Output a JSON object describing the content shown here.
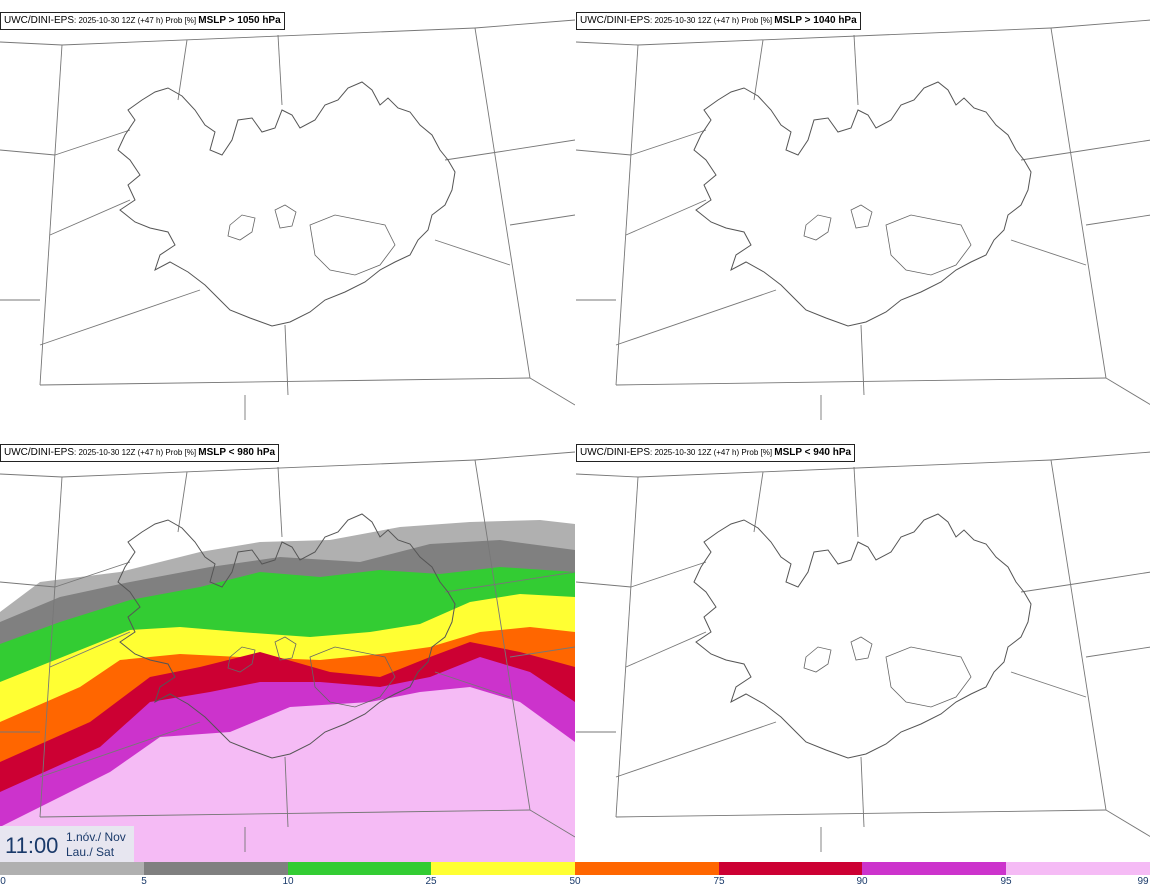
{
  "panels": [
    {
      "model": "UWC/DINI-EPS",
      "meta": ": 2025-10-30 12Z (+47 h) Prob [%] ",
      "threshold": "MSLP > 1050 hPa"
    },
    {
      "model": "UWC/DINI-EPS",
      "meta": ": 2025-10-30 12Z (+47 h) Prob [%] ",
      "threshold": "MSLP > 1040 hPa"
    },
    {
      "model": "UWC/DINI-EPS",
      "meta": ": 2025-10-30 12Z (+47 h) Prob [%] ",
      "threshold": "MSLP < 980 hPa"
    },
    {
      "model": "UWC/DINI-EPS",
      "meta": ": 2025-10-30 12Z (+47 h) Prob [%] ",
      "threshold": "MSLP < 940 hPa"
    }
  ],
  "time": {
    "hour": "11:00",
    "date_line1": "1.nóv./ Nov",
    "date_line2": "Lau./ Sat"
  },
  "colorbar": {
    "ticks": [
      "0",
      "5",
      "10",
      "25",
      "50",
      "75",
      "90",
      "95",
      "99"
    ],
    "colors": [
      "#ffffff",
      "#b0b0b0",
      "#808080",
      "#33cc33",
      "#ffff33",
      "#ff6600",
      "#cc0033",
      "#cc33cc",
      "#f5bbf5"
    ]
  }
}
